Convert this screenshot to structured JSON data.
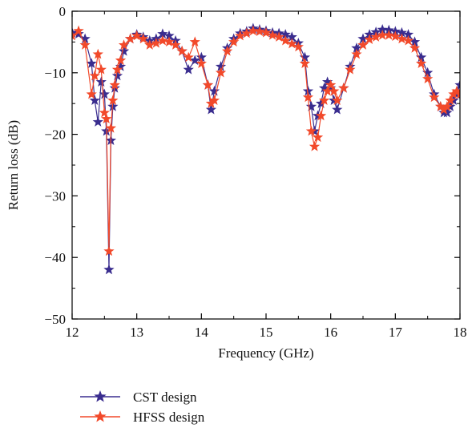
{
  "colors": {
    "cst": "#3a2d8f",
    "hfss": "#f2492a",
    "axis": "#000000",
    "background": "#ffffff"
  },
  "chart_data": {
    "type": "line",
    "title": "",
    "xlabel": "Frequency (GHz)",
    "ylabel": "Return loss (dB)",
    "xlim": [
      12,
      18
    ],
    "ylim": [
      -50,
      0
    ],
    "xticks": [
      12,
      13,
      14,
      15,
      16,
      17,
      18
    ],
    "yticks": [
      0,
      -10,
      -20,
      -30,
      -40,
      -50
    ],
    "xtick_labels": [
      "12",
      "13",
      "14",
      "15",
      "16",
      "17",
      "18"
    ],
    "ytick_labels": [
      "0",
      "−10",
      "−20",
      "−30",
      "−40",
      "−50"
    ],
    "grid": false,
    "legend_position": "below-left",
    "marker": "star",
    "series": [
      {
        "name": "CST design",
        "color": "#3a2d8f",
        "x": [
          12.0,
          12.1,
          12.2,
          12.3,
          12.35,
          12.4,
          12.45,
          12.5,
          12.53,
          12.57,
          12.6,
          12.63,
          12.66,
          12.7,
          12.75,
          12.8,
          12.9,
          13.0,
          13.1,
          13.2,
          13.3,
          13.4,
          13.5,
          13.6,
          13.7,
          13.8,
          13.9,
          14.0,
          14.1,
          14.15,
          14.2,
          14.3,
          14.4,
          14.5,
          14.6,
          14.7,
          14.8,
          14.9,
          15.0,
          15.1,
          15.2,
          15.3,
          15.4,
          15.5,
          15.6,
          15.65,
          15.7,
          15.75,
          15.8,
          15.85,
          15.9,
          15.95,
          16.0,
          16.05,
          16.1,
          16.2,
          16.3,
          16.4,
          16.5,
          16.6,
          16.7,
          16.8,
          16.9,
          17.0,
          17.1,
          17.2,
          17.3,
          17.4,
          17.5,
          17.6,
          17.7,
          17.75,
          17.8,
          17.85,
          17.9,
          17.95,
          18.0
        ],
        "y": [
          -3.5,
          -3.7,
          -4.5,
          -8.5,
          -14.5,
          -18.0,
          -11.5,
          -13.5,
          -19.5,
          -42.0,
          -21.0,
          -15.5,
          -12.5,
          -10.5,
          -9.0,
          -6.5,
          -4.5,
          -3.8,
          -4.2,
          -4.8,
          -4.5,
          -3.7,
          -4.0,
          -4.8,
          -6.5,
          -9.5,
          -8.0,
          -7.5,
          -12.0,
          -16.0,
          -13.0,
          -9.0,
          -6.0,
          -4.5,
          -3.6,
          -3.3,
          -2.8,
          -3.0,
          -3.2,
          -3.5,
          -3.6,
          -3.8,
          -4.2,
          -5.2,
          -7.5,
          -13.0,
          -15.5,
          -19.5,
          -17.0,
          -15.0,
          -12.5,
          -11.5,
          -12.5,
          -14.5,
          -16.0,
          -12.5,
          -9.0,
          -6.0,
          -4.5,
          -3.8,
          -3.4,
          -3.0,
          -3.1,
          -3.3,
          -3.5,
          -3.8,
          -5.0,
          -7.5,
          -10.0,
          -13.5,
          -15.5,
          -16.5,
          -16.5,
          -15.5,
          -14.5,
          -13.5,
          -12.0
        ]
      },
      {
        "name": "HFSS design",
        "color": "#f2492a",
        "x": [
          12.0,
          12.1,
          12.2,
          12.3,
          12.35,
          12.4,
          12.45,
          12.5,
          12.53,
          12.57,
          12.6,
          12.63,
          12.66,
          12.7,
          12.75,
          12.8,
          12.9,
          13.0,
          13.1,
          13.2,
          13.3,
          13.4,
          13.5,
          13.6,
          13.7,
          13.8,
          13.9,
          14.0,
          14.1,
          14.15,
          14.2,
          14.3,
          14.4,
          14.5,
          14.6,
          14.7,
          14.8,
          14.9,
          15.0,
          15.1,
          15.2,
          15.3,
          15.4,
          15.5,
          15.6,
          15.65,
          15.7,
          15.75,
          15.8,
          15.85,
          15.9,
          15.95,
          16.0,
          16.05,
          16.1,
          16.2,
          16.3,
          16.4,
          16.5,
          16.6,
          16.7,
          16.8,
          16.9,
          17.0,
          17.1,
          17.2,
          17.3,
          17.4,
          17.5,
          17.6,
          17.7,
          17.75,
          17.8,
          17.85,
          17.9,
          17.95,
          18.0
        ],
        "y": [
          -4.0,
          -3.2,
          -5.5,
          -13.5,
          -10.5,
          -7.0,
          -9.5,
          -16.5,
          -17.5,
          -39.0,
          -19.0,
          -14.5,
          -12.0,
          -9.5,
          -8.0,
          -5.5,
          -4.5,
          -4.0,
          -4.5,
          -5.5,
          -5.2,
          -4.8,
          -5.0,
          -5.5,
          -6.5,
          -7.5,
          -5.0,
          -8.5,
          -12.0,
          -15.0,
          -14.5,
          -10.0,
          -6.5,
          -5.0,
          -4.0,
          -3.6,
          -3.2,
          -3.3,
          -3.5,
          -3.9,
          -4.2,
          -4.8,
          -5.3,
          -5.8,
          -8.5,
          -14.0,
          -19.5,
          -22.0,
          -20.5,
          -17.0,
          -14.5,
          -13.0,
          -12.0,
          -13.0,
          -14.5,
          -12.5,
          -9.5,
          -7.0,
          -5.5,
          -4.6,
          -4.2,
          -3.9,
          -3.9,
          -4.1,
          -4.5,
          -4.8,
          -6.0,
          -8.5,
          -11.0,
          -14.0,
          -15.5,
          -16.0,
          -15.5,
          -14.5,
          -13.5,
          -13.0,
          -13.5
        ]
      }
    ]
  }
}
